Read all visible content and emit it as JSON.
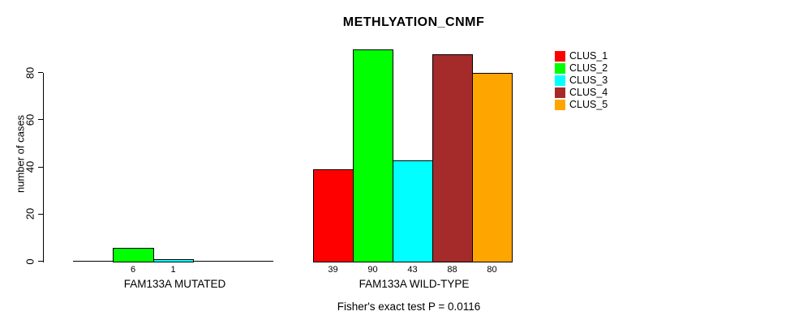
{
  "chart_data": {
    "type": "bar",
    "title": "METHLYATION_CNMF",
    "ylabel": "number of cases",
    "xlabel": "",
    "ylim": [
      0,
      90
    ],
    "yticks": [
      0,
      20,
      40,
      60,
      80
    ],
    "grid": false,
    "legend_position": "right",
    "series": [
      {
        "name": "CLUS_1",
        "color": "#FF0000"
      },
      {
        "name": "CLUS_2",
        "color": "#00FF00"
      },
      {
        "name": "CLUS_3",
        "color": "#00FFFF"
      },
      {
        "name": "CLUS_4",
        "color": "#A52A2A"
      },
      {
        "name": "CLUS_5",
        "color": "#FFA500"
      }
    ],
    "groups": [
      {
        "label": "FAM133A MUTATED",
        "values": [
          0,
          6,
          1,
          0,
          0
        ],
        "bar_labels": [
          "",
          "6",
          "1",
          "",
          ""
        ]
      },
      {
        "label": "FAM133A WILD-TYPE",
        "values": [
          39,
          90,
          43,
          88,
          80
        ],
        "bar_labels": [
          "39",
          "90",
          "43",
          "88",
          "80"
        ]
      }
    ],
    "annotation": "Fisher's exact test P = 0.0116"
  }
}
